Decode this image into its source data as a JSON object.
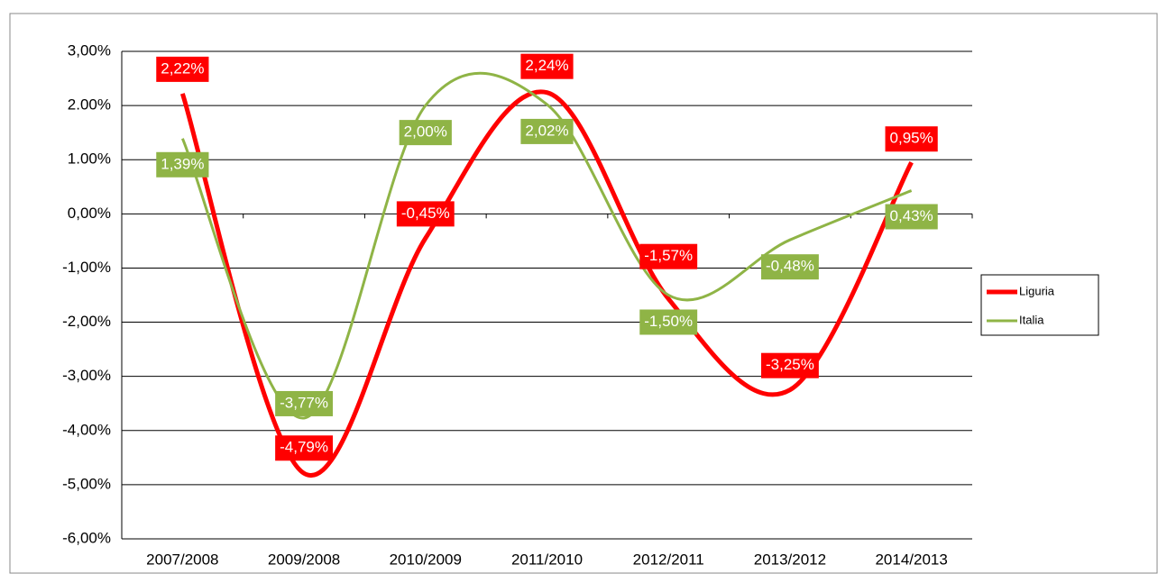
{
  "chart_data": {
    "type": "line",
    "categories": [
      "2007/2008",
      "2009/2008",
      "2010/2009",
      "2011/2010",
      "2012/2011",
      "2013/2012",
      "2014/2013"
    ],
    "series": [
      {
        "name": "Liguria",
        "color": "#ff0000",
        "values": [
          2.22,
          -4.79,
          -0.45,
          2.24,
          -1.57,
          -3.25,
          0.95
        ],
        "value_labels": [
          "2,22%",
          "-4,79%",
          "-0,45%",
          "2,24%",
          "-1,57%",
          "-3,25%",
          "0,95%"
        ]
      },
      {
        "name": "Italia",
        "color": "#8fb446",
        "values": [
          1.39,
          -3.77,
          2.0,
          2.02,
          -1.5,
          -0.48,
          0.43
        ],
        "value_labels": [
          "1,39%",
          "-3,77%",
          "2,00%",
          "2,02%",
          "-1,50%",
          "-0,48%",
          "0,43%"
        ]
      }
    ],
    "ylim": [
      -6,
      3
    ],
    "yticks": [
      {
        "value": 3,
        "label": "3,00%"
      },
      {
        "value": 2,
        "label": "2.00%"
      },
      {
        "value": 1,
        "label": "1.00%"
      },
      {
        "value": 0,
        "label": "0,00%"
      },
      {
        "value": -1,
        "label": "-1,00%"
      },
      {
        "value": -2,
        "label": "-2,00%"
      },
      {
        "value": -3,
        "label": "-3,00%"
      },
      {
        "value": -4,
        "label": "-4,00%"
      },
      {
        "value": -5,
        "label": "-5,00%"
      },
      {
        "value": -6,
        "label": "-6,00%"
      }
    ],
    "grid": true,
    "legend": "right",
    "smooth": true
  }
}
